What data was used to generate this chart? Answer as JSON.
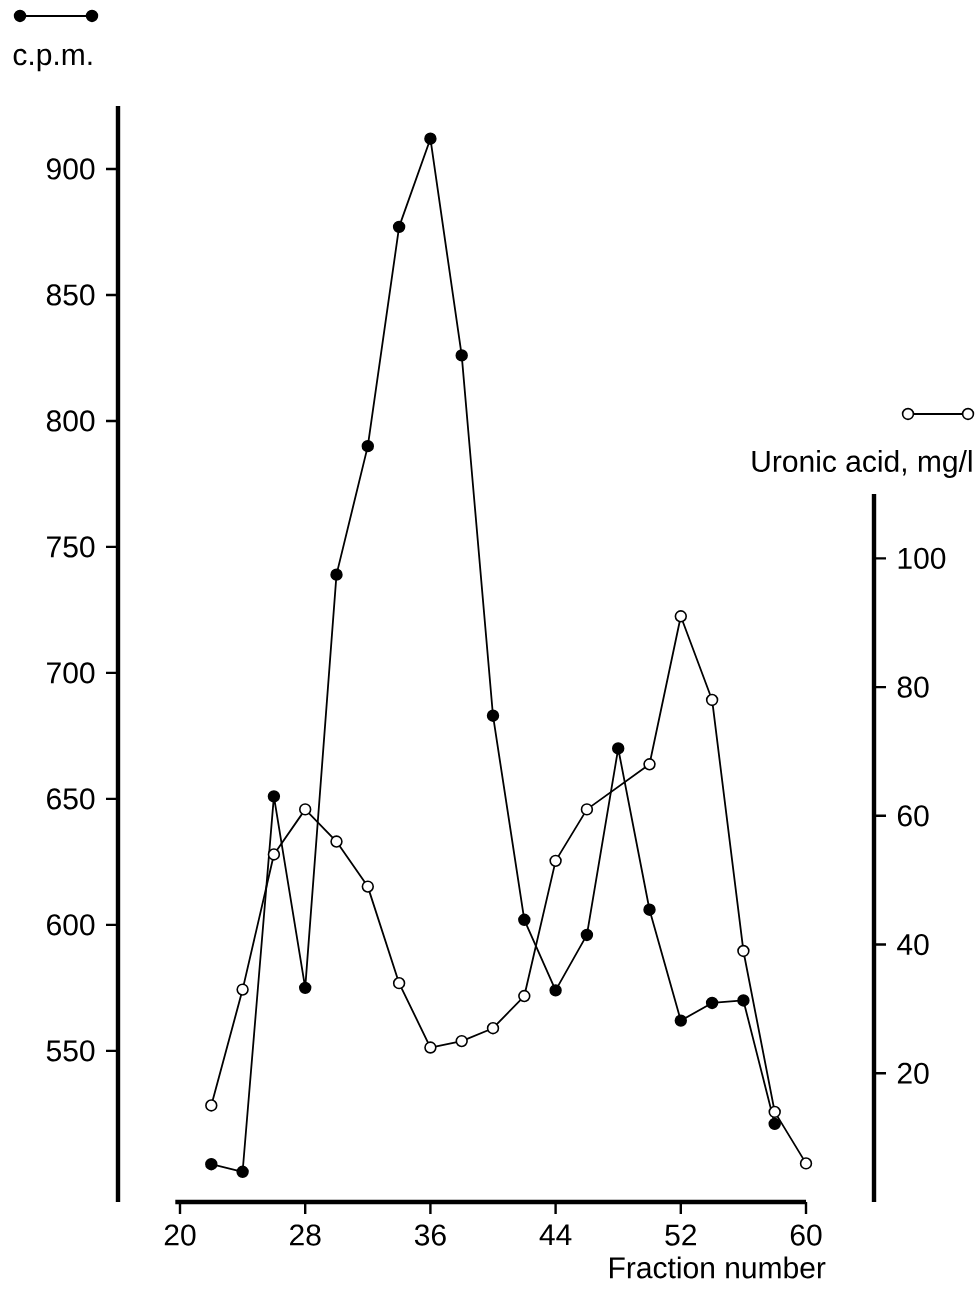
{
  "chart_data": {
    "type": "line",
    "xlabel": "Fraction number",
    "ylabel": "c.p.m.",
    "y2label": "Uronic acid, mg/l",
    "xlim": [
      20,
      60
    ],
    "xticks": [
      20,
      28,
      36,
      44,
      52,
      60
    ],
    "ylim": [
      490,
      925
    ],
    "yticks": [
      550,
      600,
      650,
      700,
      750,
      800,
      850,
      900
    ],
    "y2lim": [
      0,
      110
    ],
    "y2ticks": [
      20,
      40,
      60,
      80,
      100
    ],
    "marker": "circle",
    "series": [
      {
        "color": "#000000",
        "x": [
          22,
          24,
          26,
          28,
          30,
          32,
          34,
          36,
          38,
          40,
          42,
          44,
          46,
          48,
          50,
          52,
          54,
          56,
          58
        ],
        "values": [
          505,
          502,
          651,
          575,
          739,
          790,
          877,
          912,
          826,
          683,
          602,
          574,
          596,
          670,
          606,
          562,
          569,
          570,
          521
        ]
      },
      {
        "color": "#000000",
        "axis": "y2",
        "x": [
          22,
          24,
          26,
          28,
          30,
          32,
          34,
          36,
          38,
          40,
          42,
          44,
          46,
          50,
          52,
          54,
          56,
          58,
          60
        ],
        "values": [
          15,
          33,
          54,
          61,
          56,
          49,
          34,
          24,
          25,
          27,
          32,
          53,
          61,
          68,
          91,
          78,
          39,
          14,
          6
        ]
      }
    ]
  }
}
